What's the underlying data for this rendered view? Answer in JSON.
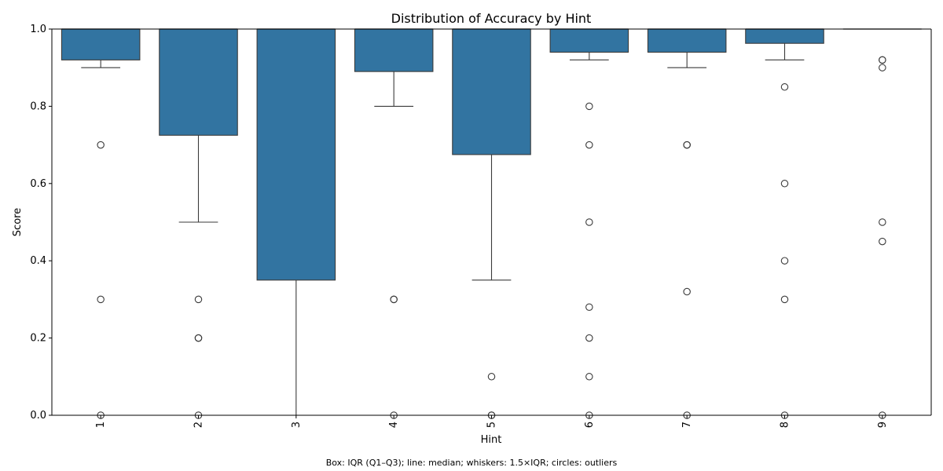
{
  "chart_data": {
    "type": "box",
    "title": "Distribution of Accuracy by Hint",
    "xlabel": "Hint",
    "ylabel": "Score",
    "ylim": [
      0.0,
      1.0
    ],
    "yticks": [
      "0.0",
      "0.2",
      "0.4",
      "0.6",
      "0.8",
      "1.0"
    ],
    "grid": false,
    "box_color": "#3274a1",
    "categories": [
      "1",
      "2",
      "3",
      "4",
      "5",
      "6",
      "7",
      "8",
      "9"
    ],
    "boxes": [
      {
        "category": "1",
        "q1": 0.92,
        "median": 1.0,
        "q3": 1.0,
        "whisker_low": 0.9,
        "whisker_high": 1.0,
        "outliers": [
          0.7,
          0.3,
          0.0
        ]
      },
      {
        "category": "2",
        "q1": 0.725,
        "median": 1.0,
        "q3": 1.0,
        "whisker_low": 0.5,
        "whisker_high": 1.0,
        "outliers": [
          0.3,
          0.2,
          0.2,
          0.0
        ]
      },
      {
        "category": "3",
        "q1": 0.35,
        "median": 1.0,
        "q3": 1.0,
        "whisker_low": 0.0,
        "whisker_high": 1.0,
        "outliers": []
      },
      {
        "category": "4",
        "q1": 0.89,
        "median": 1.0,
        "q3": 1.0,
        "whisker_low": 0.8,
        "whisker_high": 1.0,
        "outliers": [
          0.3,
          0.3,
          0.0
        ]
      },
      {
        "category": "5",
        "q1": 0.675,
        "median": 1.0,
        "q3": 1.0,
        "whisker_low": 0.35,
        "whisker_high": 1.0,
        "outliers": [
          0.1,
          0.0,
          0.0
        ]
      },
      {
        "category": "6",
        "q1": 0.94,
        "median": 1.0,
        "q3": 1.0,
        "whisker_low": 0.92,
        "whisker_high": 1.0,
        "outliers": [
          0.8,
          0.7,
          0.5,
          0.28,
          0.2,
          0.1,
          0.0
        ]
      },
      {
        "category": "7",
        "q1": 0.94,
        "median": 1.0,
        "q3": 1.0,
        "whisker_low": 0.9,
        "whisker_high": 1.0,
        "outliers": [
          0.7,
          0.7,
          0.32,
          0.0
        ]
      },
      {
        "category": "8",
        "q1": 0.963,
        "median": 1.0,
        "q3": 1.0,
        "whisker_low": 0.92,
        "whisker_high": 1.0,
        "outliers": [
          0.85,
          0.6,
          0.4,
          0.3,
          0.0
        ]
      },
      {
        "category": "9",
        "q1": 1.0,
        "median": 1.0,
        "q3": 1.0,
        "whisker_low": 1.0,
        "whisker_high": 1.0,
        "outliers": [
          0.92,
          0.92,
          0.9,
          0.5,
          0.45,
          0.0
        ]
      }
    ]
  },
  "caption": "Box: IQR (Q1–Q3); line: median; whiskers: 1.5×IQR; circles: outliers"
}
